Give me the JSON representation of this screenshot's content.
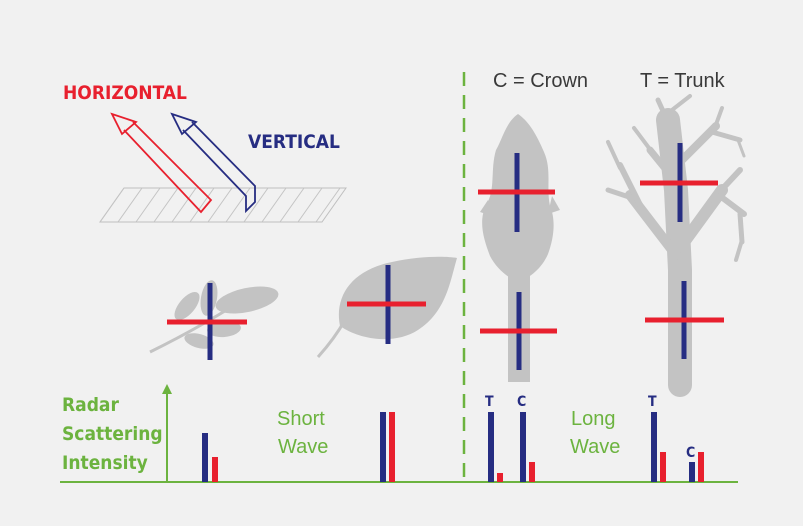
{
  "colors": {
    "background": "#f1f1f1",
    "red": "#e8202e",
    "blue": "#262d82",
    "green": "#6cb33f",
    "grey": "#c3c3c3"
  },
  "polarization": {
    "horizontal_label": "HORIZONTAL",
    "vertical_label": "VERTICAL"
  },
  "legend": {
    "crown": "C = Crown",
    "trunk": "T = Trunk"
  },
  "axis": {
    "ylabel_line1": "Radar",
    "ylabel_line2": "Scattering",
    "ylabel_line3": "Intensity"
  },
  "sections": {
    "short_line1": "Short",
    "short_line2": "Wave",
    "long_line1": "Long",
    "long_line2": "Wave"
  },
  "bar_letters": {
    "t1": "T",
    "c1": "C",
    "t2": "T",
    "c2": "C"
  },
  "icons": [
    "leaf-sprig-icon",
    "leaf-icon",
    "conifer-tree-icon",
    "bare-tree-icon"
  ]
}
